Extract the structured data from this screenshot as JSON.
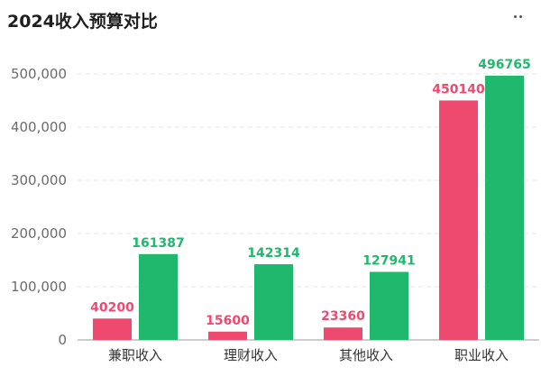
{
  "title": "2024收入预算对比",
  "more_icon": "more-dots-icon",
  "chart_data": {
    "type": "bar",
    "title": "2024收入预算对比",
    "categories": [
      "兼职收入",
      "理财收入",
      "其他收入",
      "职业收入"
    ],
    "series": [
      {
        "values": [
          40200,
          15600,
          23360,
          450140
        ],
        "color": "#ee4a70"
      },
      {
        "values": [
          161387,
          142314,
          127941,
          496765
        ],
        "color": "#20b86c"
      }
    ],
    "yticks": [
      "0",
      "100,000",
      "200,000",
      "300,000",
      "400,000",
      "500,000"
    ],
    "ylim": [
      0,
      500000
    ],
    "grid": true,
    "xlabel": "",
    "ylabel": ""
  }
}
